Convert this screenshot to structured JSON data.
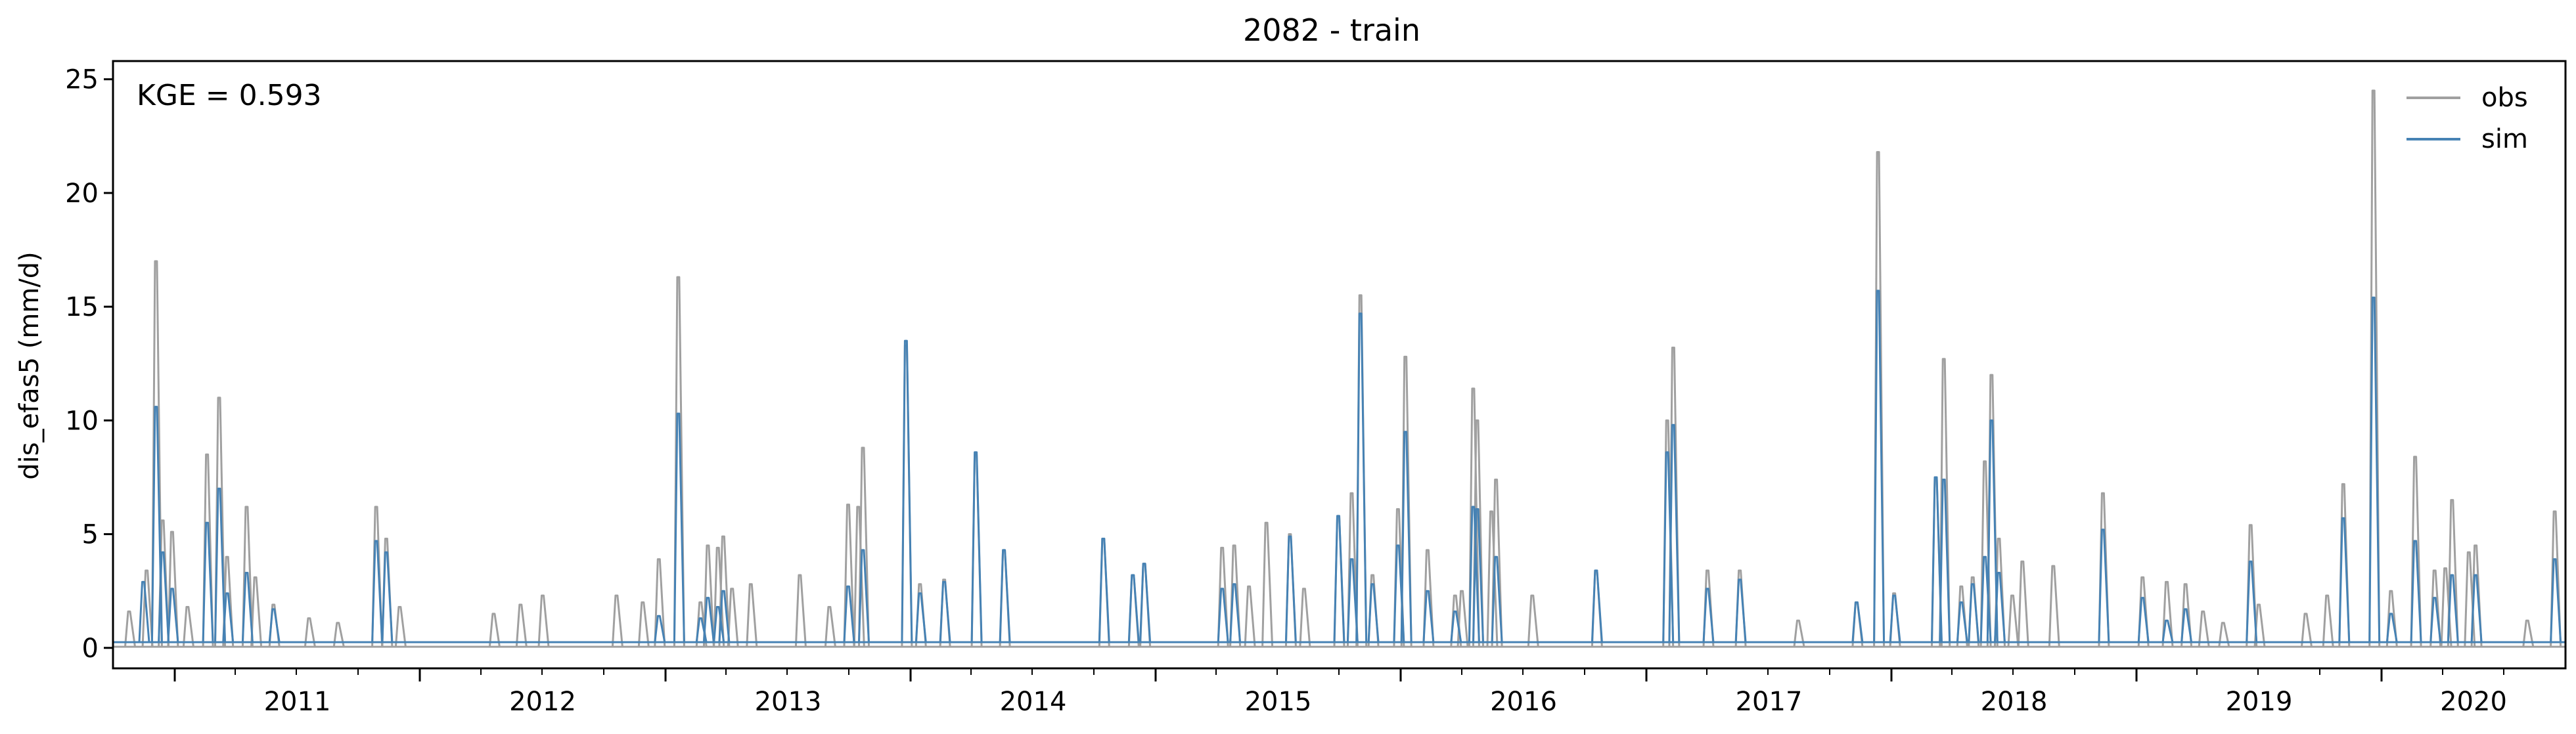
{
  "chart_data": {
    "type": "line",
    "title": "2082 - train",
    "xlabel": "",
    "ylabel": "dis_efas5 (mm/d)",
    "annotation": "KGE = 0.593",
    "xlim": [
      "2010-10-01",
      "2020-10-01"
    ],
    "ylim": [
      -0.9,
      25.8
    ],
    "yticks": [
      0,
      5,
      10,
      15,
      20,
      25
    ],
    "xtick_labels": [
      "2011",
      "2012",
      "2013",
      "2014",
      "2015",
      "2016",
      "2017",
      "2018",
      "2019",
      "2020"
    ],
    "legend_position": "top-right",
    "grid": false,
    "baseline": {
      "obs": 0.05,
      "sim": 0.25
    },
    "series": [
      {
        "name": "obs",
        "color": "#a0a0a0",
        "peaks": [
          [
            "2010-10-25",
            1.6
          ],
          [
            "2010-11-20",
            3.4
          ],
          [
            "2010-12-04",
            17.0
          ],
          [
            "2010-12-14",
            5.6
          ],
          [
            "2010-12-28",
            5.1
          ],
          [
            "2011-01-20",
            1.8
          ],
          [
            "2011-02-18",
            8.5
          ],
          [
            "2011-03-08",
            11.0
          ],
          [
            "2011-03-20",
            4.0
          ],
          [
            "2011-04-18",
            6.2
          ],
          [
            "2011-05-01",
            3.1
          ],
          [
            "2011-05-28",
            1.9
          ],
          [
            "2011-07-20",
            1.3
          ],
          [
            "2011-09-01",
            1.1
          ],
          [
            "2011-10-28",
            6.2
          ],
          [
            "2011-11-12",
            4.8
          ],
          [
            "2011-12-02",
            1.8
          ],
          [
            "2012-04-20",
            1.5
          ],
          [
            "2012-05-30",
            1.9
          ],
          [
            "2012-07-02",
            2.3
          ],
          [
            "2012-10-20",
            2.3
          ],
          [
            "2012-11-28",
            2.0
          ],
          [
            "2012-12-22",
            3.9
          ],
          [
            "2013-01-20",
            16.3
          ],
          [
            "2013-02-22",
            2.0
          ],
          [
            "2013-03-05",
            4.5
          ],
          [
            "2013-03-20",
            4.4
          ],
          [
            "2013-03-28",
            4.9
          ],
          [
            "2013-04-10",
            2.6
          ],
          [
            "2013-05-08",
            2.8
          ],
          [
            "2013-07-20",
            3.2
          ],
          [
            "2013-09-02",
            1.8
          ],
          [
            "2013-09-30",
            6.3
          ],
          [
            "2013-10-15",
            6.2
          ],
          [
            "2013-10-22",
            8.8
          ],
          [
            "2013-12-25",
            13.3
          ],
          [
            "2014-01-15",
            2.8
          ],
          [
            "2014-02-20",
            3.0
          ],
          [
            "2014-04-08",
            8.5
          ],
          [
            "2014-05-20",
            4.3
          ],
          [
            "2014-10-15",
            4.8
          ],
          [
            "2014-11-28",
            3.2
          ],
          [
            "2014-12-15",
            3.7
          ],
          [
            "2015-04-10",
            4.4
          ],
          [
            "2015-04-28",
            4.5
          ],
          [
            "2015-05-20",
            2.7
          ],
          [
            "2015-06-15",
            5.5
          ],
          [
            "2015-07-20",
            5.0
          ],
          [
            "2015-08-10",
            2.6
          ],
          [
            "2015-09-30",
            5.8
          ],
          [
            "2015-10-20",
            6.8
          ],
          [
            "2015-11-02",
            15.5
          ],
          [
            "2015-11-20",
            3.2
          ],
          [
            "2015-12-28",
            6.1
          ],
          [
            "2016-01-08",
            12.8
          ],
          [
            "2016-02-10",
            4.3
          ],
          [
            "2016-03-22",
            2.3
          ],
          [
            "2016-04-01",
            2.5
          ],
          [
            "2016-04-18",
            11.4
          ],
          [
            "2016-04-24",
            10.0
          ],
          [
            "2016-05-15",
            6.0
          ],
          [
            "2016-05-22",
            7.4
          ],
          [
            "2016-07-15",
            2.3
          ],
          [
            "2016-10-18",
            3.4
          ],
          [
            "2017-02-01",
            10.0
          ],
          [
            "2017-02-10",
            13.2
          ],
          [
            "2017-04-02",
            3.4
          ],
          [
            "2017-05-20",
            3.4
          ],
          [
            "2017-08-15",
            1.2
          ],
          [
            "2017-11-10",
            2.0
          ],
          [
            "2017-12-12",
            21.8
          ],
          [
            "2018-01-05",
            2.4
          ],
          [
            "2018-03-08",
            7.5
          ],
          [
            "2018-03-20",
            12.7
          ],
          [
            "2018-04-15",
            2.7
          ],
          [
            "2018-05-02",
            3.1
          ],
          [
            "2018-05-20",
            8.2
          ],
          [
            "2018-05-30",
            12.0
          ],
          [
            "2018-06-10",
            4.8
          ],
          [
            "2018-06-30",
            2.3
          ],
          [
            "2018-07-15",
            3.8
          ],
          [
            "2018-08-30",
            3.6
          ],
          [
            "2018-11-12",
            6.8
          ],
          [
            "2019-01-10",
            3.1
          ],
          [
            "2019-02-15",
            2.9
          ],
          [
            "2019-03-15",
            2.8
          ],
          [
            "2019-04-10",
            1.6
          ],
          [
            "2019-05-10",
            1.1
          ],
          [
            "2019-06-20",
            5.4
          ],
          [
            "2019-07-02",
            1.9
          ],
          [
            "2019-09-10",
            1.5
          ],
          [
            "2019-10-12",
            2.3
          ],
          [
            "2019-11-05",
            7.2
          ],
          [
            "2019-12-20",
            24.5
          ],
          [
            "2020-01-15",
            2.5
          ],
          [
            "2020-02-20",
            8.4
          ],
          [
            "2020-03-20",
            3.4
          ],
          [
            "2020-04-05",
            3.5
          ],
          [
            "2020-04-15",
            6.5
          ],
          [
            "2020-05-10",
            4.2
          ],
          [
            "2020-05-20",
            4.5
          ],
          [
            "2020-08-05",
            1.2
          ],
          [
            "2020-09-15",
            6.0
          ]
        ]
      },
      {
        "name": "sim",
        "color": "#4682b4",
        "peaks": [
          [
            "2010-11-15",
            2.9
          ],
          [
            "2010-12-04",
            10.6
          ],
          [
            "2010-12-14",
            4.2
          ],
          [
            "2010-12-28",
            2.6
          ],
          [
            "2011-02-18",
            5.5
          ],
          [
            "2011-03-08",
            7.0
          ],
          [
            "2011-03-20",
            2.4
          ],
          [
            "2011-04-18",
            3.3
          ],
          [
            "2011-05-28",
            1.7
          ],
          [
            "2011-10-28",
            4.7
          ],
          [
            "2011-11-12",
            4.2
          ],
          [
            "2012-12-22",
            1.4
          ],
          [
            "2013-01-20",
            10.3
          ],
          [
            "2013-02-22",
            1.3
          ],
          [
            "2013-03-05",
            2.2
          ],
          [
            "2013-03-20",
            1.8
          ],
          [
            "2013-03-28",
            2.5
          ],
          [
            "2013-09-30",
            2.7
          ],
          [
            "2013-10-22",
            4.3
          ],
          [
            "2013-12-25",
            13.5
          ],
          [
            "2014-01-15",
            2.4
          ],
          [
            "2014-02-20",
            2.9
          ],
          [
            "2014-04-08",
            8.6
          ],
          [
            "2014-05-20",
            4.3
          ],
          [
            "2014-10-15",
            4.8
          ],
          [
            "2014-11-28",
            3.2
          ],
          [
            "2014-12-15",
            3.7
          ],
          [
            "2015-04-10",
            2.6
          ],
          [
            "2015-04-28",
            2.8
          ],
          [
            "2015-07-20",
            4.9
          ],
          [
            "2015-09-30",
            5.8
          ],
          [
            "2015-10-20",
            3.9
          ],
          [
            "2015-11-02",
            14.7
          ],
          [
            "2015-11-20",
            2.8
          ],
          [
            "2015-12-28",
            4.5
          ],
          [
            "2016-01-08",
            9.5
          ],
          [
            "2016-02-10",
            2.5
          ],
          [
            "2016-03-22",
            1.6
          ],
          [
            "2016-04-18",
            6.2
          ],
          [
            "2016-04-24",
            6.1
          ],
          [
            "2016-05-22",
            4.0
          ],
          [
            "2016-10-18",
            3.4
          ],
          [
            "2017-02-01",
            8.6
          ],
          [
            "2017-02-10",
            9.8
          ],
          [
            "2017-04-02",
            2.6
          ],
          [
            "2017-05-20",
            3.0
          ],
          [
            "2017-11-10",
            2.0
          ],
          [
            "2017-12-12",
            15.7
          ],
          [
            "2018-01-05",
            2.3
          ],
          [
            "2018-03-08",
            7.5
          ],
          [
            "2018-03-20",
            7.4
          ],
          [
            "2018-04-15",
            2.0
          ],
          [
            "2018-05-02",
            2.8
          ],
          [
            "2018-05-20",
            4.0
          ],
          [
            "2018-05-30",
            10.0
          ],
          [
            "2018-06-10",
            3.3
          ],
          [
            "2018-11-12",
            5.2
          ],
          [
            "2019-01-10",
            2.2
          ],
          [
            "2019-02-15",
            1.2
          ],
          [
            "2019-03-15",
            1.7
          ],
          [
            "2019-06-20",
            3.8
          ],
          [
            "2019-11-05",
            5.7
          ],
          [
            "2019-12-20",
            15.4
          ],
          [
            "2020-01-15",
            1.5
          ],
          [
            "2020-02-20",
            4.7
          ],
          [
            "2020-03-20",
            2.2
          ],
          [
            "2020-04-15",
            3.2
          ],
          [
            "2020-05-20",
            3.2
          ],
          [
            "2020-09-15",
            3.9
          ]
        ]
      }
    ]
  }
}
